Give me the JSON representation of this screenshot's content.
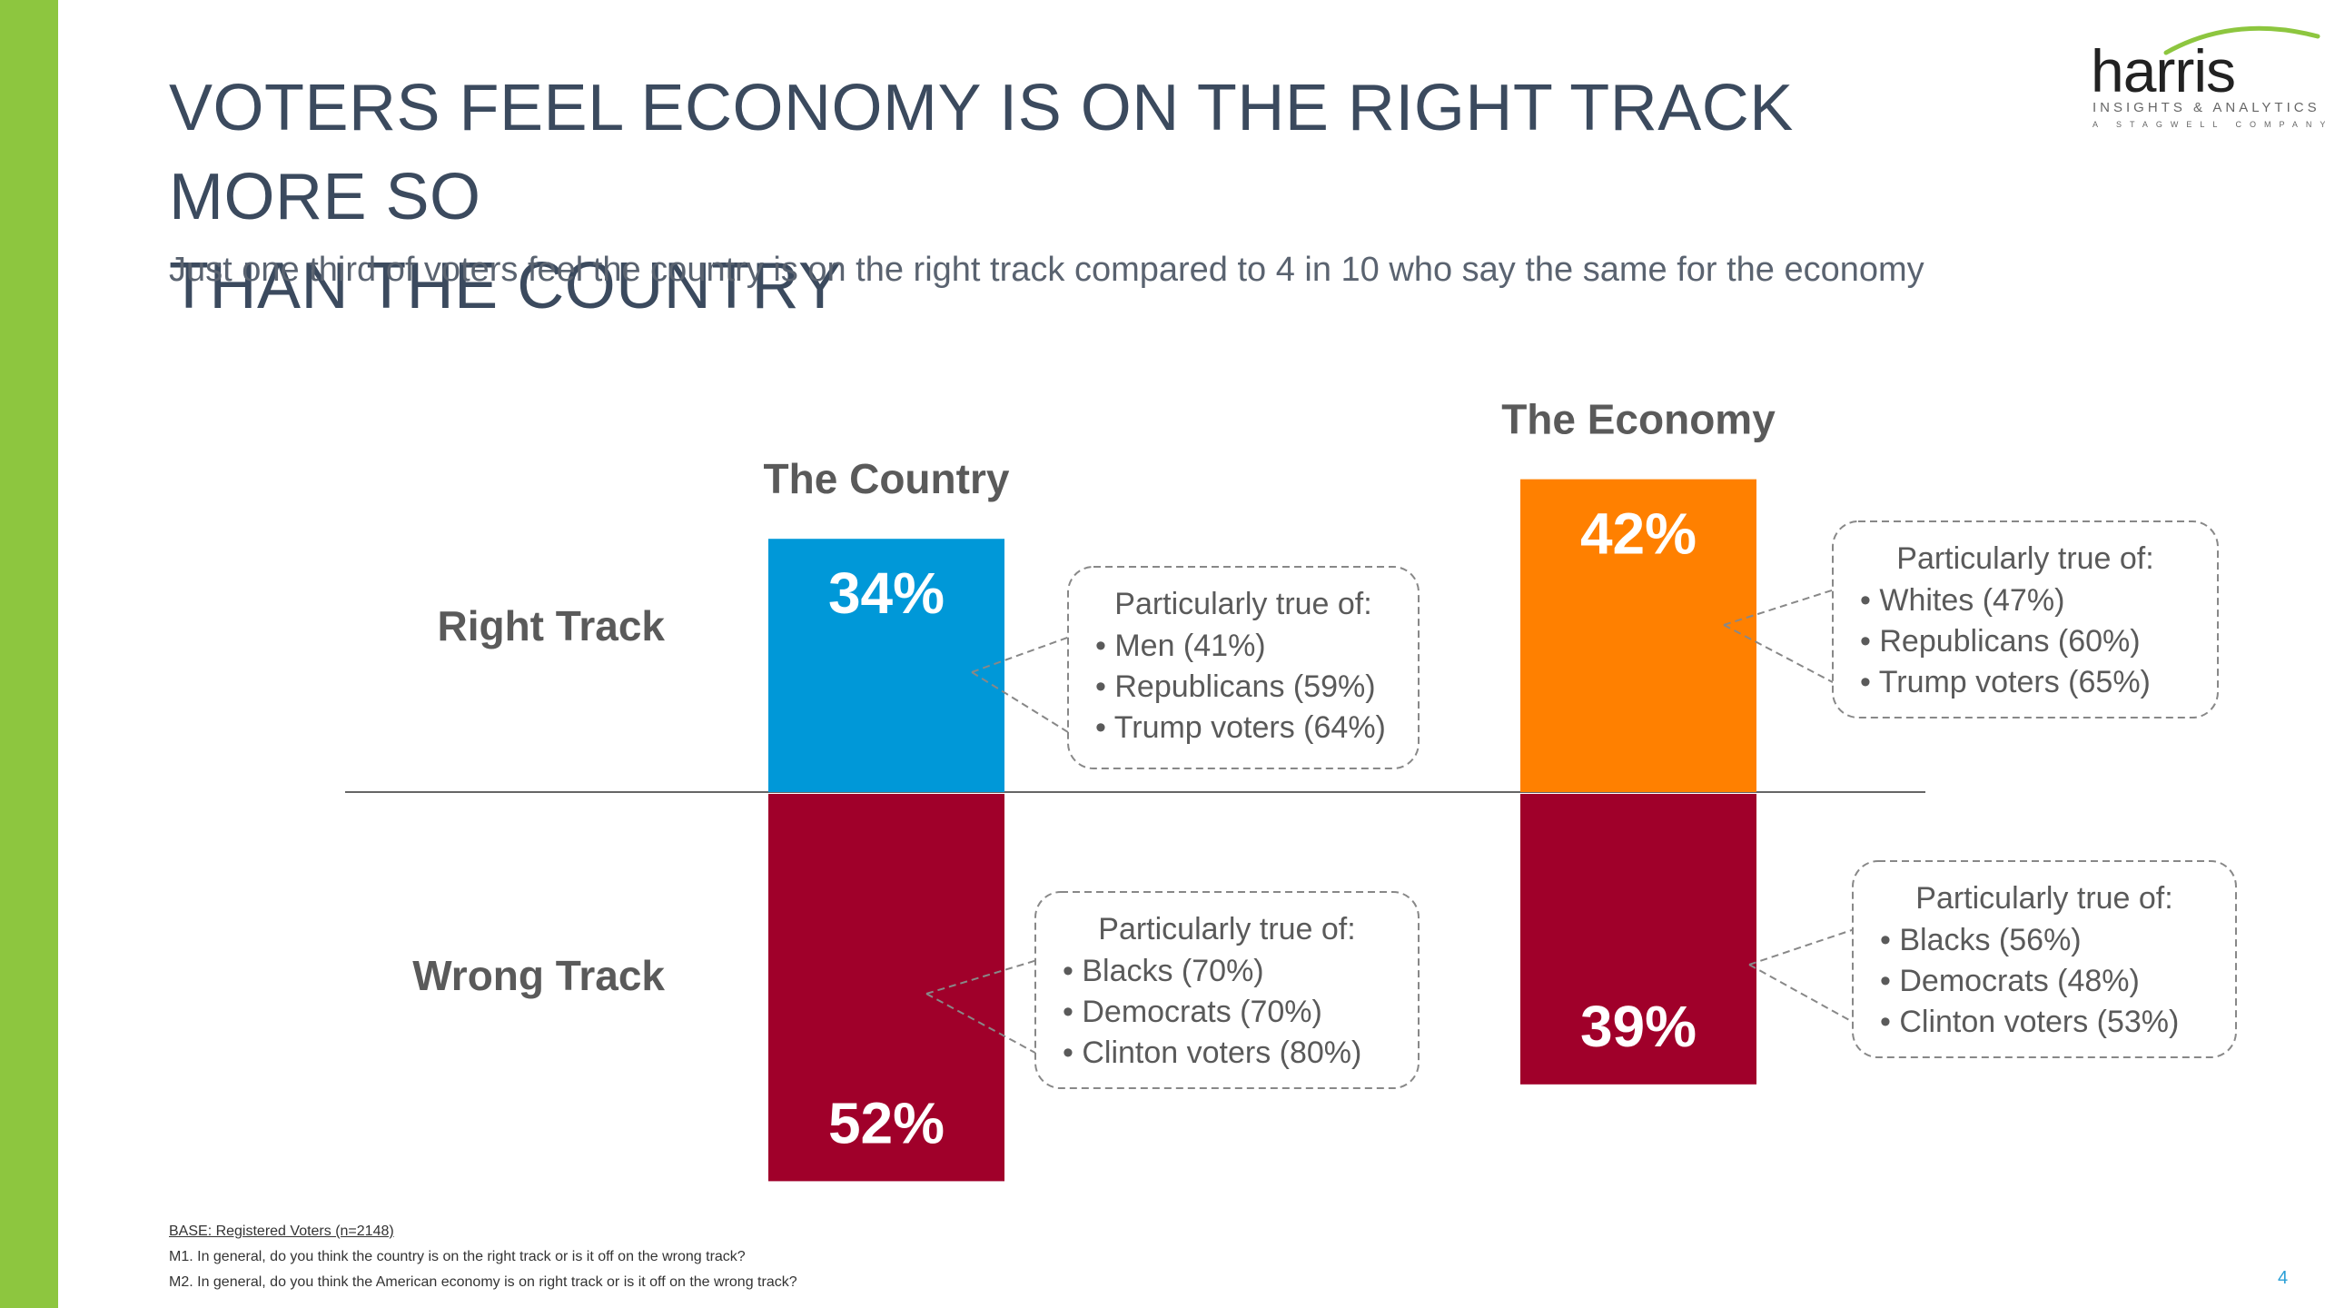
{
  "slide": {
    "title_line1": "VOTERS FEEL ECONOMY IS ON THE RIGHT TRACK MORE SO",
    "title_line2": "THAN THE COUNTRY",
    "subtitle": "Just one third of voters feel the country is on the right track compared to 4 in 10 who say the same for the economy",
    "page_number": "4",
    "accent_color": "#8dc63f"
  },
  "logo": {
    "word": "harris",
    "tagline": "INSIGHTS & ANALYTICS",
    "tagline2": "A STAGWELL COMPANY",
    "swoosh_color": "#8dc63f"
  },
  "footnotes": {
    "base": "BASE: Registered Voters (n=2148)",
    "m1": "M1. In general, do you think the country is on the right track or is it off on the wrong track?",
    "m2": "M2. In general, do you think the American economy is on right track or is it off on the wrong track?"
  },
  "chart_data": {
    "type": "bar",
    "categories": [
      "The Country",
      "The Economy"
    ],
    "row_labels": [
      "Right Track",
      "Wrong Track"
    ],
    "series": [
      {
        "name": "Right Track",
        "values": [
          34,
          42
        ],
        "colors": [
          "#0098d8",
          "#ff8000"
        ]
      },
      {
        "name": "Wrong Track",
        "values": [
          52,
          39
        ],
        "colors": [
          "#a0002a",
          "#a0002a"
        ]
      }
    ],
    "value_labels": {
      "right": [
        "34%",
        "42%"
      ],
      "wrong": [
        "52%",
        "39%"
      ]
    },
    "ylim": [
      -60,
      60
    ],
    "callouts": [
      {
        "category": "The Country",
        "track": "Right Track",
        "heading": "Particularly true of:",
        "items": [
          "Men (41%)",
          "Republicans (59%)",
          "Trump voters (64%)"
        ]
      },
      {
        "category": "The Economy",
        "track": "Right Track",
        "heading": "Particularly true of:",
        "items": [
          "Whites (47%)",
          "Republicans (60%)",
          "Trump voters (65%)"
        ]
      },
      {
        "category": "The Country",
        "track": "Wrong Track",
        "heading": "Particularly true of:",
        "items": [
          "Blacks (70%)",
          "Democrats (70%)",
          "Clinton voters (80%)"
        ]
      },
      {
        "category": "The Economy",
        "track": "Wrong Track",
        "heading": "Particularly true of:",
        "items": [
          "Blacks (56%)",
          "Democrats (48%)",
          "Clinton voters (53%)"
        ]
      }
    ]
  }
}
